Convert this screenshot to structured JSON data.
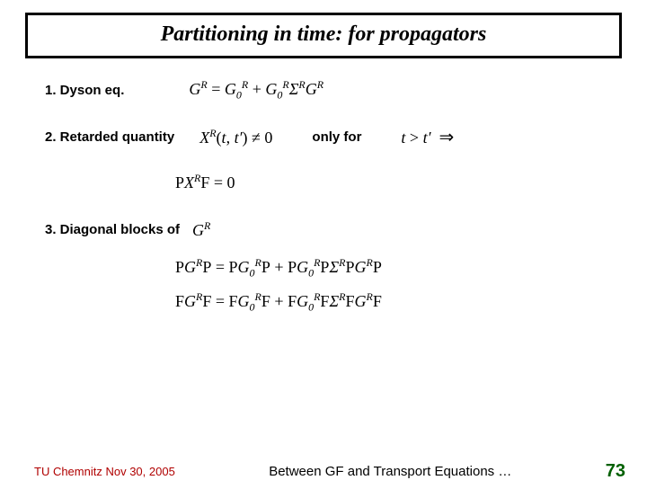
{
  "title": "Partitioning in time: for propagators",
  "items": {
    "1": {
      "label": "1. Dyson eq.",
      "formula_html": "G<sup>R</sup> <span class='roman'>=</span> G<sub>0</sub><sup>R</sup> <span class='roman'>+</span> G<sub>0</sub><sup>R</sup>&Sigma;<sup>R</sup>G<sup>R</sup>"
    },
    "2": {
      "label": "2. Retarded quantity",
      "formula_a_html": "X<sup>R</sup><span class='roman'>(</span>t<span class='roman'>,</span> t&prime;<span class='roman'>)</span> <span class='roman'>&ne;</span> <span class='roman'>0</span>",
      "mid": "only for",
      "formula_b_html": "t <span class='roman'>&gt;</span> t&prime; &nbsp;<span class='big-arrow'>&rArr;</span>",
      "formula_below_html": "<span class='roman'>P</span>X<sup>R</sup><span class='roman'>F</span> <span class='roman'>=</span> <span class='roman'>0</span>"
    },
    "3": {
      "label": "3. Diagonal blocks of",
      "formula_ref_html": "G<sup>R</sup>",
      "block_a_html": "<span class='roman'>P</span>G<sup>R</sup><span class='roman'>P</span> <span class='roman'>=</span> <span class='roman'>P</span>G<sub>0</sub><sup>R</sup><span class='roman'>P</span> <span class='roman'>+</span> <span class='roman'>P</span>G<sub>0</sub><sup>R</sup><span class='roman'>P</span>&Sigma;<sup>R</sup><span class='roman'>P</span>G<sup>R</sup><span class='roman'>P</span>",
      "block_b_html": "<span class='roman'>F</span>G<sup>R</sup><span class='roman'>F</span> <span class='roman'>=</span> <span class='roman'>F</span>G<sub>0</sub><sup>R</sup><span class='roman'>F</span> <span class='roman'>+</span> <span class='roman'>F</span>G<sub>0</sub><sup>R</sup><span class='roman'>F</span>&Sigma;<sup>R</sup><span class='roman'>F</span>G<sup>R</sup><span class='roman'>F</span>"
    }
  },
  "footer": {
    "left": "TU Chemnitz Nov 30, 2005",
    "center": "Between GF and Transport Equations …",
    "page": "73"
  }
}
